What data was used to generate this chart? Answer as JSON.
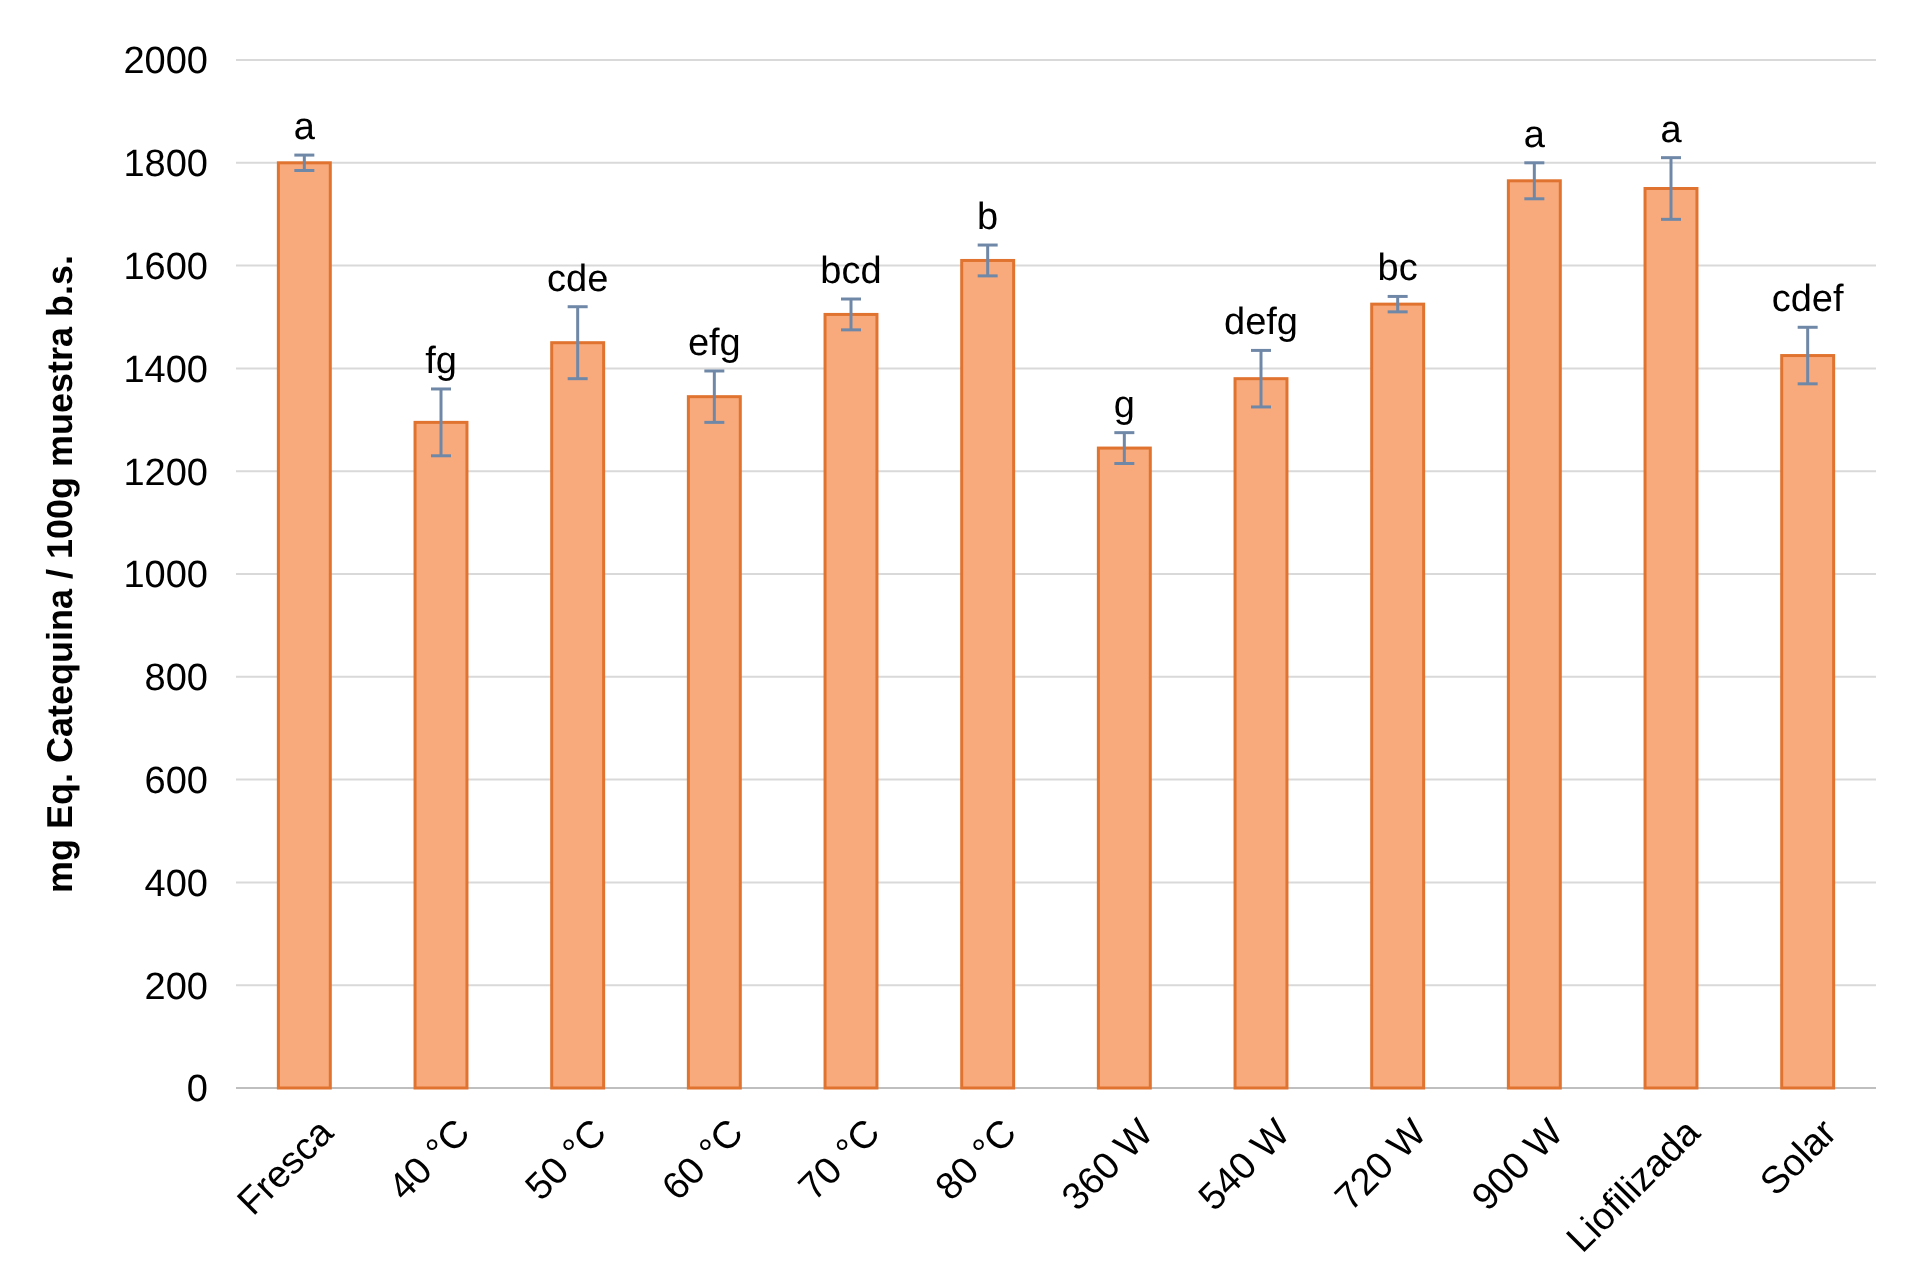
{
  "chart_data": {
    "type": "bar",
    "ylabel": "mg Eq. Catequina / 100g muestra b.s.",
    "categories": [
      "Fresca",
      "40 °C",
      "50 °C",
      "60 °C",
      "70 °C",
      "80 °C",
      "360 W",
      "540 W",
      "720 W",
      "900 W",
      "Liofilizada",
      "Solar"
    ],
    "values": [
      1800,
      1295,
      1450,
      1345,
      1505,
      1610,
      1245,
      1380,
      1525,
      1765,
      1750,
      1425
    ],
    "errors": [
      15,
      65,
      70,
      50,
      30,
      30,
      30,
      55,
      15,
      35,
      60,
      55
    ],
    "color": "#f8aa7c",
    "ylim": [
      0,
      2000
    ],
    "yticks": [
      0,
      200,
      400,
      600,
      800,
      1000,
      1200,
      1400,
      1600,
      1800,
      2000
    ],
    "grid": "y",
    "annotations": [
      {
        "text": "a",
        "x": "Fresca",
        "y": 1815
      },
      {
        "text": "fg",
        "x": "40 °C",
        "y": 1360
      },
      {
        "text": "cde",
        "x": "50 °C",
        "y": 1520
      },
      {
        "text": "efg",
        "x": "60 °C",
        "y": 1395
      },
      {
        "text": "bcd",
        "x": "70 °C",
        "y": 1535
      },
      {
        "text": "b",
        "x": "80 °C",
        "y": 1640
      },
      {
        "text": "g",
        "x": "360 W",
        "y": 1275
      },
      {
        "text": "defg",
        "x": "540 W",
        "y": 1435
      },
      {
        "text": "bc",
        "x": "720 W",
        "y": 1540
      },
      {
        "text": "a",
        "x": "900 W",
        "y": 1800
      },
      {
        "text": "a",
        "x": "Liofilizada",
        "y": 1810
      },
      {
        "text": "cdef",
        "x": "Solar",
        "y": 1480
      }
    ]
  }
}
